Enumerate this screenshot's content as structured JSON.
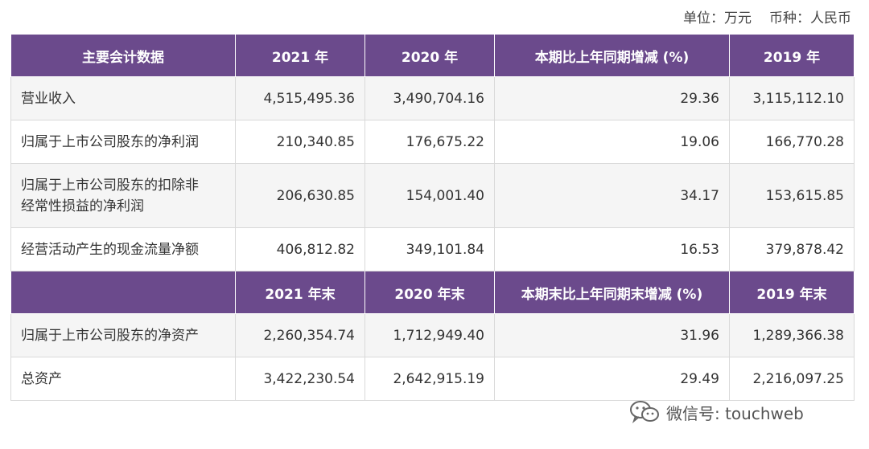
{
  "unit": {
    "unit_label": "单位：万元",
    "currency_label": "币种：人民币"
  },
  "table": {
    "header1": [
      "主要会计数据",
      "2021 年",
      "2020 年",
      "本期比上年同期增减 (%)",
      "2019 年"
    ],
    "rows1": [
      [
        "营业收入",
        "4,515,495.36",
        "3,490,704.16",
        "29.36",
        "3,115,112.10"
      ],
      [
        "归属于上市公司股东的净利润",
        "210,340.85",
        "176,675.22",
        "19.06",
        "166,770.28"
      ],
      [
        "归属于上市公司股东的扣除非经常性损益的净利润",
        "206,630.85",
        "154,001.40",
        "34.17",
        "153,615.85"
      ],
      [
        "经营活动产生的现金流量净额",
        "406,812.82",
        "349,101.84",
        "16.53",
        "379,878.42"
      ]
    ],
    "header2": [
      "",
      "2021 年末",
      "2020 年末",
      "本期末比上年同期末增减 (%)",
      "2019 年末"
    ],
    "rows2": [
      [
        "归属于上市公司股东的净资产",
        "2,260,354.74",
        "1,712,949.40",
        "31.96",
        "1,289,366.38"
      ],
      [
        "总资产",
        "3,422,230.54",
        "2,642,915.19",
        "29.49",
        "2,216,097.25"
      ]
    ],
    "row3_label_line1": "归属于上市公司股东的扣除非",
    "row3_label_line2": "经常性损益的净利润"
  },
  "watermark": {
    "text": "微信号: touchweb",
    "icon": "wechat-icon"
  }
}
